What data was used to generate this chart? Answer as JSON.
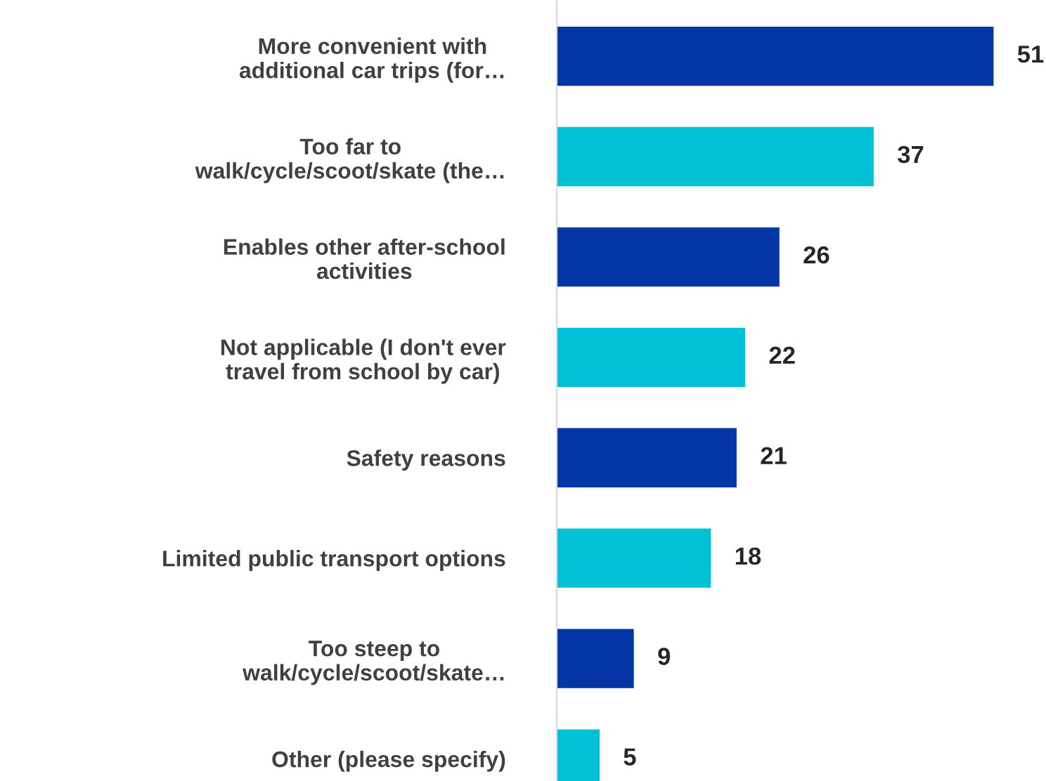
{
  "chart_data": {
    "type": "bar",
    "orientation": "horizontal",
    "categories": [
      "More convenient with\nadditional car trips (for…",
      "Too far to\nwalk/cycle/scoot/skate (the…",
      "Enables other after-school\nactivities",
      "Not applicable (I don't ever\ntravel from school by car)",
      "Safety reasons",
      "Limited public transport options",
      "Too steep to\nwalk/cycle/scoot/skate…",
      "Other (please specify)"
    ],
    "values": [
      51,
      37,
      26,
      22,
      21,
      18,
      9,
      5
    ],
    "colors": [
      "#0536a5",
      "#00c1d5",
      "#0536a5",
      "#00c1d5",
      "#0536a5",
      "#00c1d5",
      "#0536a5",
      "#00c1d5"
    ],
    "data_labels": true,
    "grid": false,
    "legend": false
  }
}
